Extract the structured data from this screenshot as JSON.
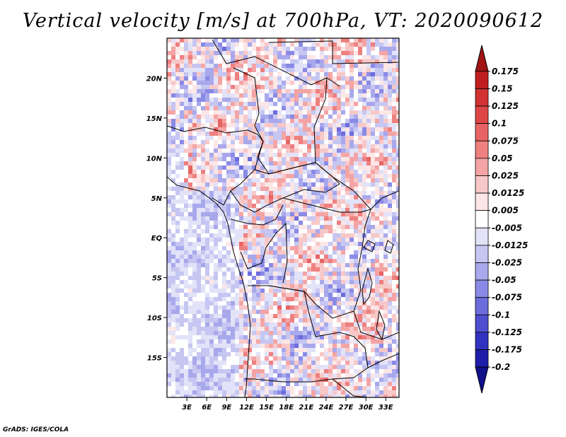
{
  "title": "Vertical velocity [m/s] at 700hPa, VT: 2020090612",
  "footer": "GrADS: IGES/COLA",
  "map": {
    "lon_range": [
      0,
      35
    ],
    "lat_range": [
      -20,
      25
    ],
    "lon_ticks": [
      {
        "value": 3,
        "label": "3E"
      },
      {
        "value": 6,
        "label": "6E"
      },
      {
        "value": 9,
        "label": "9E"
      },
      {
        "value": 12,
        "label": "12E"
      },
      {
        "value": 15,
        "label": "15E"
      },
      {
        "value": 18,
        "label": "18E"
      },
      {
        "value": 21,
        "label": "21E"
      },
      {
        "value": 24,
        "label": "24E"
      },
      {
        "value": 27,
        "label": "27E"
      },
      {
        "value": 30,
        "label": "30E"
      },
      {
        "value": 33,
        "label": "33E"
      }
    ],
    "lat_ticks": [
      {
        "value": 20,
        "label": "20N"
      },
      {
        "value": 15,
        "label": "15N"
      },
      {
        "value": 10,
        "label": "10N"
      },
      {
        "value": 5,
        "label": "5N"
      },
      {
        "value": 0,
        "label": "EQ"
      },
      {
        "value": -5,
        "label": "5S"
      },
      {
        "value": -10,
        "label": "10S"
      },
      {
        "value": -15,
        "label": "15S"
      }
    ]
  },
  "colorbar": {
    "labels": [
      "0.175",
      "0.15",
      "0.125",
      "0.1",
      "0.075",
      "0.05",
      "0.025",
      "0.0125",
      "0.005",
      "-0.005",
      "-0.0125",
      "-0.025",
      "-0.05",
      "-0.075",
      "-0.1",
      "-0.125",
      "-0.175",
      "-0.2"
    ],
    "colors": [
      "#a01414",
      "#c01e1e",
      "#d23232",
      "#de4646",
      "#e86464",
      "#ee8080",
      "#f4a4a4",
      "#f8c8c8",
      "#fce6e6",
      "#ffffff",
      "#e2e2f8",
      "#c6c6f2",
      "#a8a8ec",
      "#8a8ae6",
      "#6c6cdc",
      "#4e4ed0",
      "#3232c0",
      "#1e1eaa",
      "#10108c"
    ]
  }
}
